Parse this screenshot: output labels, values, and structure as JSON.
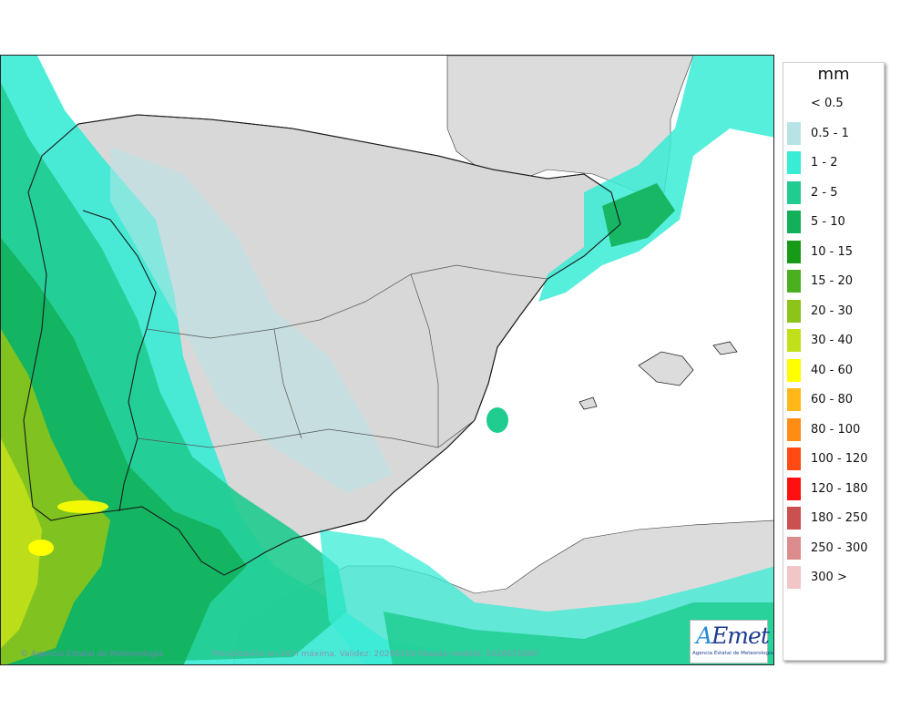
{
  "map": {
    "credit_left": "© Agencia Estatal de Meteorología",
    "credit_center": "Precipitación en 24 h máxima. Validez: 20260318 Pasada modelo: 2026031800",
    "colors": {
      "sea": "#ffffff",
      "land": "#dcdcdc",
      "boundary": "#111111"
    }
  },
  "logo": {
    "word_a": "A",
    "word_rest": "Emet",
    "subtitle": "Agencia Estatal de Meteorología"
  },
  "legend": {
    "unit": "mm",
    "items": [
      {
        "label": "< 0.5",
        "color": "#ffffff"
      },
      {
        "label": "0.5 - 1",
        "color": "#b8e3e6"
      },
      {
        "label": "1 - 2",
        "color": "#38ecd6"
      },
      {
        "label": "2 - 5",
        "color": "#20cc90"
      },
      {
        "label": "5 - 10",
        "color": "#12b058"
      },
      {
        "label": "10 - 15",
        "color": "#179a18"
      },
      {
        "label": "15 - 20",
        "color": "#4bb020"
      },
      {
        "label": "20 - 30",
        "color": "#8cc41a"
      },
      {
        "label": "30 - 40",
        "color": "#c2e01a"
      },
      {
        "label": "40 - 60",
        "color": "#ffff00"
      },
      {
        "label": "60 - 80",
        "color": "#ffb818"
      },
      {
        "label": "80 - 100",
        "color": "#ff8c14"
      },
      {
        "label": "100 - 120",
        "color": "#ff4a14"
      },
      {
        "label": "120 - 180",
        "color": "#ff1010"
      },
      {
        "label": "180 - 250",
        "color": "#cc5050"
      },
      {
        "label": "250 - 300",
        "color": "#dc8c8c"
      },
      {
        "label": "300 >",
        "color": "#f0c6c6"
      }
    ]
  }
}
